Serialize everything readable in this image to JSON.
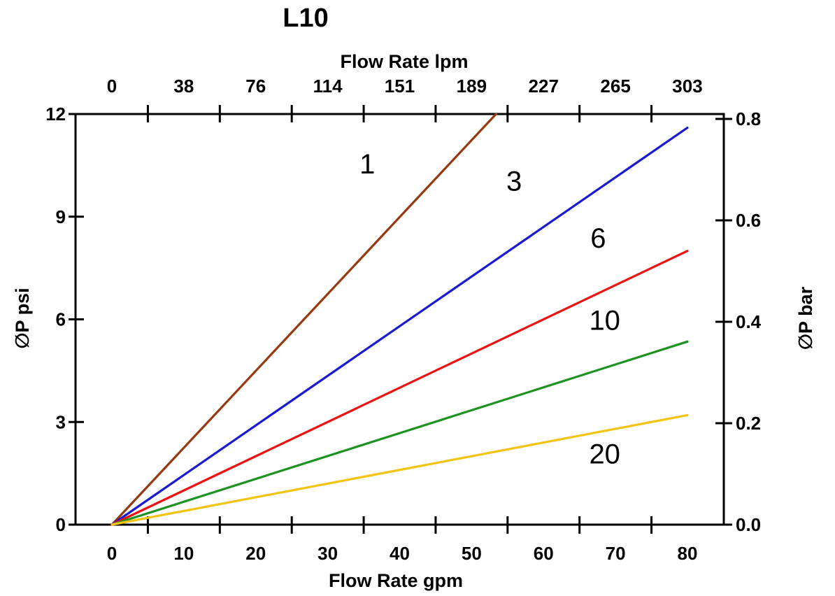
{
  "chart_data": {
    "type": "line",
    "title": "L10",
    "grid": false,
    "legend": "inline labels next to lines",
    "top_axis": {
      "label": "Flow Rate lpm",
      "ticks": [
        "0",
        "38",
        "76",
        "114",
        "151",
        "189",
        "227",
        "265",
        "303"
      ],
      "range": [
        0,
        303
      ]
    },
    "bottom_axis": {
      "label": "Flow Rate gpm",
      "ticks": [
        "0",
        "10",
        "20",
        "30",
        "40",
        "50",
        "60",
        "70",
        "80"
      ],
      "range": [
        0,
        80
      ]
    },
    "left_axis": {
      "label": "∅P psi",
      "ticks": [
        "0",
        "3",
        "6",
        "9",
        "12"
      ],
      "range": [
        0,
        12
      ]
    },
    "right_axis": {
      "label": "∅P bar",
      "ticks": [
        "0.0",
        "0.2",
        "0.4",
        "0.6",
        "0.8"
      ],
      "range": [
        0,
        0.8
      ]
    },
    "tick_style_note": "top and bottom tick marks are drawn midway between value labels",
    "series": [
      {
        "name": "1",
        "color": "#96390F",
        "points": [
          [
            0,
            0
          ],
          [
            53.4,
            12.0
          ]
        ],
        "label_at": [
          35.5,
          10.55
        ]
      },
      {
        "name": "3",
        "color": "#1A1AD0",
        "points": [
          [
            0,
            0
          ],
          [
            80,
            11.6
          ]
        ],
        "label_at": [
          55.9,
          10.05
        ]
      },
      {
        "name": "6",
        "color": "#EE1111",
        "points": [
          [
            0,
            0
          ],
          [
            80,
            8.0
          ]
        ],
        "label_at": [
          67.6,
          8.38
        ]
      },
      {
        "name": "10",
        "color": "#1C9222",
        "points": [
          [
            0,
            0
          ],
          [
            80,
            5.35
          ]
        ],
        "label_at": [
          68.5,
          5.98
        ]
      },
      {
        "name": "20",
        "color": "#F2C411",
        "points": [
          [
            0,
            0
          ],
          [
            80,
            3.2
          ]
        ],
        "label_at": [
          68.5,
          2.08
        ]
      }
    ]
  }
}
